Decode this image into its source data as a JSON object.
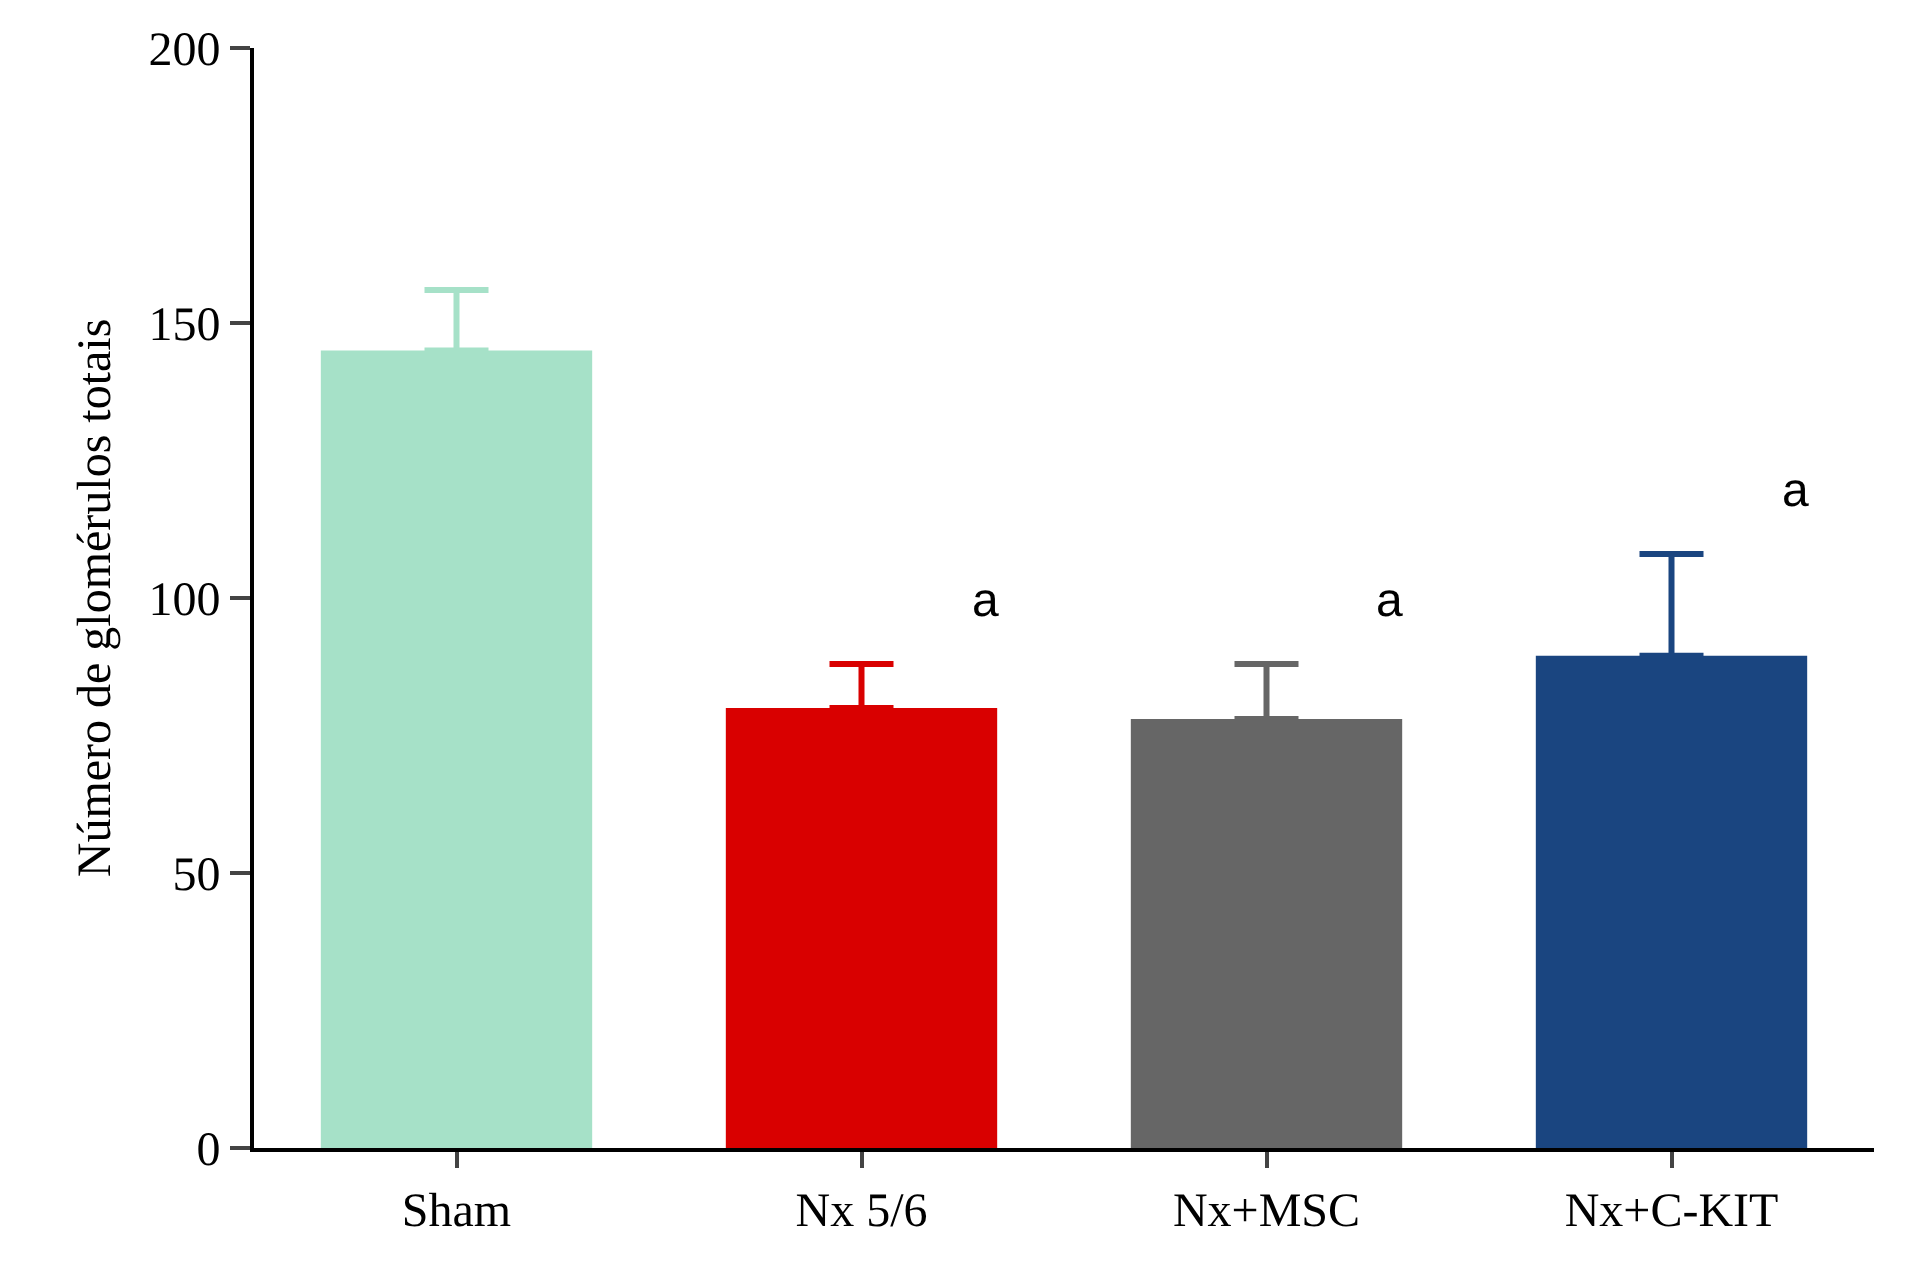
{
  "chart_data": {
    "type": "bar",
    "ylabel": "Número de glomérulos totais",
    "categories": [
      "Sham",
      "Nx 5/6",
      "Nx+MSC",
      "Nx+C-KIT"
    ],
    "values": [
      145,
      80,
      78,
      89.5
    ],
    "colors": [
      "#a6e1c8",
      "#d90000",
      "#666666",
      "#1a4580"
    ],
    "errors": [
      [
        145,
        156
      ],
      [
        80,
        88
      ],
      [
        78,
        88
      ],
      [
        89.5,
        108
      ]
    ],
    "ylim": [
      0,
      200
    ],
    "yticks": [
      0,
      50,
      100,
      150,
      200
    ],
    "annotations": [
      {
        "text": "a",
        "x": "Nx 5/6",
        "y": 80
      },
      {
        "text": "a",
        "x": "Nx+MSC",
        "y": 78
      },
      {
        "text": "a",
        "x": "Nx+C-KIT",
        "y": 108
      }
    ]
  }
}
